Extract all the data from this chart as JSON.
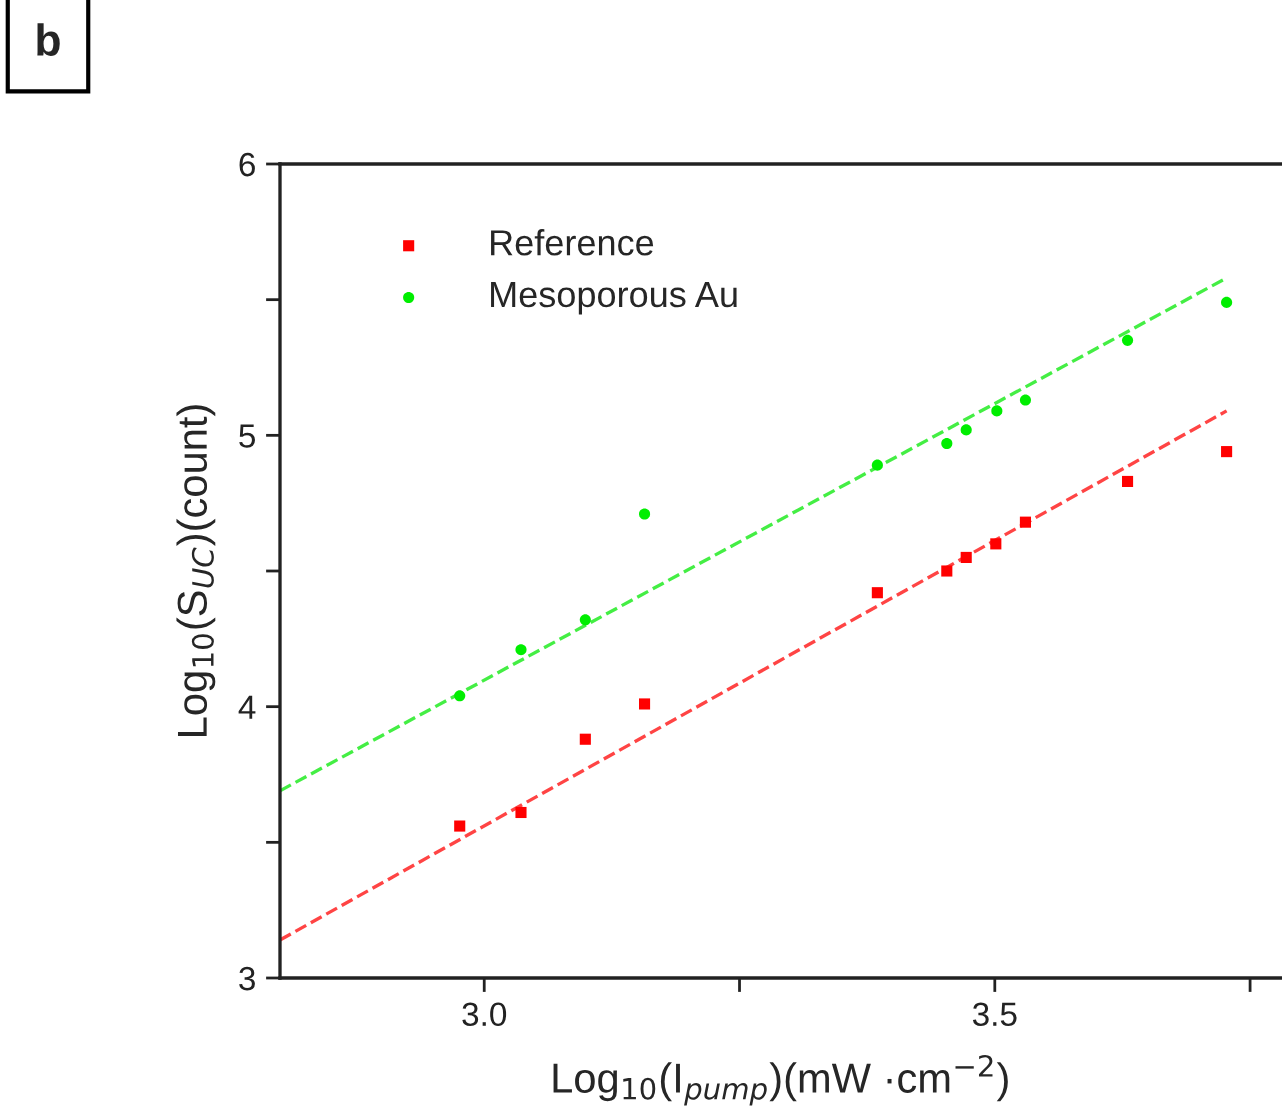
{
  "chart_data": {
    "type": "scatter",
    "xlabel": "Log$_{10}$(I$_{pump}$)(mW ·cm$^{−2}$)",
    "ylabel": "Log$_{10}$(S$_{UC}$)(count)",
    "annotations": [
      "b"
    ],
    "series": [
      {
        "name": "Reference",
        "color": "#ff0000",
        "marker": "square",
        "x": [
          2.976,
          3.036,
          3.099,
          3.157,
          3.385,
          3.453,
          3.472,
          3.501,
          3.53,
          3.63,
          3.727
        ],
        "values": [
          3.56,
          3.61,
          3.88,
          4.01,
          4.42,
          4.5,
          4.55,
          4.6,
          4.68,
          4.83,
          4.94
        ]
      },
      {
        "name": "Mesoporous Au",
        "color": "#00ee00",
        "marker": "circle",
        "x": [
          2.976,
          3.036,
          3.099,
          3.157,
          3.385,
          3.453,
          3.472,
          3.502,
          3.53,
          3.63,
          3.727
        ],
        "values": [
          4.04,
          4.21,
          4.32,
          4.71,
          4.89,
          4.97,
          5.02,
          5.09,
          5.13,
          5.35,
          5.49
        ]
      },
      {
        "type": "line",
        "color": "#ff4444",
        "line_style": "dashed",
        "x": [
          2.8,
          3.727
        ],
        "values": [
          3.14,
          5.09
        ]
      },
      {
        "type": "line",
        "color": "#44ee44",
        "line_style": "dashed",
        "x": [
          2.8,
          3.727
        ],
        "values": [
          3.69,
          5.58
        ]
      }
    ],
    "xlim": [
      2.8,
      3.78
    ],
    "xticks": [
      {
        "value": 3,
        "label": "3.0"
      },
      {
        "value": 3.25,
        "label": null
      },
      3.5,
      {
        "value": 3.75,
        "label": null
      }
    ],
    "ylim": [
      3,
      6
    ],
    "yticks": [
      3,
      {
        "value": 3.5,
        "label": null
      },
      4,
      {
        "value": 4.5,
        "label": null
      },
      5,
      {
        "value": 5.5,
        "label": null
      },
      6
    ],
    "legend": "top left",
    "grid": false
  }
}
